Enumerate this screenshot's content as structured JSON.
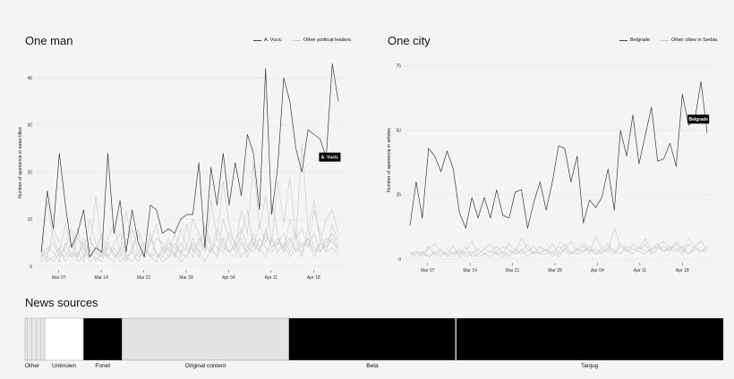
{
  "left_panel": {
    "title": "One man",
    "legend": [
      "A. Vucic",
      "Other political leaders"
    ],
    "callout": "A. Vucic"
  },
  "right_panel": {
    "title": "One city",
    "legend": [
      "Belgrade",
      "Other cities in Serbia"
    ],
    "callout": "Belgrade"
  },
  "sources_title": "News sources",
  "chart_data": [
    {
      "type": "line",
      "title": "One man",
      "xlabel": "",
      "ylabel": "Number of aperience in news titles",
      "ylim": [
        0,
        44
      ],
      "yticks": [
        0,
        10,
        20,
        30,
        40
      ],
      "xticks": [
        "Mar 07",
        "Mar 14",
        "Mar 21",
        "Mar 28",
        "Apr 04",
        "Apr 11",
        "Apr 18"
      ],
      "series": [
        {
          "name": "A. Vucic",
          "values": [
            3,
            16,
            8,
            24,
            13,
            4,
            7,
            12,
            2,
            4,
            3,
            24,
            7,
            14,
            3,
            12,
            5,
            2,
            13,
            12,
            7,
            8,
            7,
            10,
            11,
            11,
            22,
            4,
            21,
            13,
            24,
            13,
            22,
            15,
            28,
            24,
            12,
            42,
            11,
            21,
            40,
            35,
            25,
            20,
            29,
            28,
            27,
            23,
            43,
            35
          ]
        },
        {
          "name": "Other political leaders",
          "values": [
            1,
            14,
            6,
            3,
            9,
            4,
            8,
            2,
            10,
            5,
            2,
            6,
            9,
            3,
            12,
            4,
            7,
            2,
            5,
            9,
            3,
            6,
            2,
            8,
            4,
            10,
            7,
            3,
            14,
            6,
            18,
            9,
            4,
            12,
            7,
            22,
            8,
            15,
            5,
            18,
            9,
            19,
            6,
            26,
            8,
            14,
            5,
            10,
            12,
            7
          ]
        },
        {
          "name": "Other political leaders",
          "values": [
            2,
            3,
            5,
            2,
            4,
            8,
            2,
            6,
            3,
            15,
            4,
            2,
            5,
            7,
            2,
            3,
            8,
            4,
            2,
            6,
            5,
            3,
            7,
            2,
            9,
            3,
            5,
            8,
            4,
            2,
            10,
            6,
            3,
            7,
            12,
            4,
            9,
            5,
            14,
            7,
            3,
            10,
            6,
            8,
            4,
            12,
            7,
            3,
            9,
            5
          ]
        },
        {
          "name": "Other political leaders",
          "values": [
            4,
            2,
            8,
            5,
            3,
            2,
            6,
            4,
            2,
            3,
            7,
            2,
            4,
            2,
            5,
            8,
            3,
            2,
            6,
            3,
            2,
            5,
            4,
            3,
            2,
            6,
            3,
            9,
            5,
            4,
            3,
            7,
            5,
            2,
            4,
            6,
            3,
            8,
            4,
            5,
            7,
            3,
            6,
            2,
            8,
            4,
            3,
            5,
            7,
            4
          ]
        },
        {
          "name": "Other political leaders",
          "values": [
            1,
            2,
            1,
            3,
            2,
            5,
            1,
            2,
            4,
            1,
            3,
            2,
            1,
            4,
            2,
            1,
            3,
            5,
            2,
            1,
            4,
            2,
            3,
            1,
            2,
            5,
            3,
            1,
            4,
            2,
            6,
            3,
            2,
            5,
            3,
            7,
            4,
            2,
            6,
            3,
            5,
            2,
            4,
            3,
            6,
            2,
            5,
            3,
            4,
            2
          ]
        },
        {
          "name": "Other political leaders",
          "values": [
            3,
            1,
            2,
            4,
            1,
            3,
            2,
            5,
            1,
            2,
            1,
            4,
            3,
            1,
            2,
            3,
            1,
            4,
            2,
            3,
            1,
            2,
            5,
            3,
            4,
            2,
            6,
            4,
            3,
            8,
            5,
            3,
            4,
            6,
            2,
            5,
            3,
            7,
            4,
            6,
            3,
            5,
            7,
            4,
            6,
            3,
            5,
            4,
            6,
            3
          ]
        },
        {
          "name": "Other political leaders",
          "values": [
            2,
            4,
            3,
            1,
            5,
            2,
            3,
            1,
            6,
            3,
            2,
            5,
            2,
            3,
            1,
            4,
            2,
            3,
            7,
            2,
            3,
            4,
            2,
            5,
            3,
            4,
            2,
            5,
            3,
            6,
            4,
            3,
            5,
            8,
            4,
            3,
            6,
            4,
            3,
            5,
            4,
            6,
            3,
            5,
            4,
            7,
            3,
            6,
            5,
            4
          ]
        }
      ]
    },
    {
      "type": "line",
      "title": "One city",
      "xlabel": "",
      "ylabel": "Number of aperience in articles",
      "ylim": [
        0,
        77
      ],
      "yticks": [
        0,
        25,
        50,
        75
      ],
      "xticks": [
        "Mar 07",
        "Mar 14",
        "Mar 21",
        "Mar 28",
        "Apr 04",
        "Apr 11",
        "Apr 18"
      ],
      "series": [
        {
          "name": "Belgrade",
          "values": [
            13,
            30,
            16,
            43,
            40,
            34,
            42,
            35,
            18,
            12,
            24,
            16,
            24,
            16,
            27,
            17,
            16,
            26,
            27,
            12,
            22,
            30,
            19,
            30,
            44,
            43,
            30,
            40,
            14,
            23,
            20,
            24,
            35,
            19,
            50,
            40,
            56,
            37,
            48,
            59,
            38,
            39,
            45,
            36,
            64,
            52,
            54,
            69,
            49
          ]
        },
        {
          "name": "Other cities in Serbia",
          "values": [
            2,
            3,
            1,
            4,
            6,
            3,
            2,
            5,
            1,
            3,
            7,
            2,
            4,
            3,
            5,
            2,
            6,
            3,
            8,
            4,
            2,
            5,
            3,
            6,
            2,
            4,
            7,
            3,
            5,
            2,
            9,
            4,
            3,
            12,
            5,
            3,
            6,
            4,
            8,
            3,
            5,
            7,
            4,
            6,
            3,
            8,
            5,
            7,
            4
          ]
        },
        {
          "name": "Other cities in Serbia",
          "values": [
            1,
            2,
            3,
            1,
            2,
            4,
            1,
            3,
            2,
            5,
            1,
            2,
            4,
            6,
            2,
            3,
            1,
            4,
            2,
            3,
            5,
            2,
            4,
            1,
            3,
            6,
            2,
            4,
            3,
            5,
            2,
            4,
            6,
            3,
            2,
            5,
            4,
            3,
            6,
            2,
            4,
            5,
            3,
            7,
            4,
            2,
            5,
            3,
            4
          ]
        },
        {
          "name": "Other cities in Serbia",
          "values": [
            3,
            1,
            2,
            5,
            2,
            1,
            4,
            2,
            3,
            1,
            2,
            4,
            2,
            1,
            3,
            5,
            4,
            2,
            3,
            6,
            2,
            3,
            4,
            2,
            5,
            3,
            2,
            4,
            6,
            3,
            4,
            2,
            5,
            3,
            6,
            4,
            2,
            5,
            3,
            4,
            6,
            3,
            5,
            4,
            2,
            6,
            4,
            3,
            5
          ]
        },
        {
          "name": "Other cities in Serbia",
          "values": [
            2,
            3,
            2,
            1,
            3,
            2,
            2,
            1,
            4,
            2,
            3,
            1,
            2,
            3,
            2,
            1,
            3,
            2,
            4,
            1,
            3,
            2,
            2,
            3,
            1,
            4,
            3,
            2,
            3,
            4,
            2,
            3,
            4,
            2,
            5,
            3,
            4,
            3,
            2,
            4,
            5,
            3,
            4,
            3,
            5,
            2,
            4,
            3,
            3
          ]
        }
      ]
    },
    {
      "type": "bar",
      "title": "News sources",
      "categories": [
        "Other",
        "Unknown",
        "Fonet",
        "Original content",
        "Beta",
        "Tanjug"
      ],
      "values": [
        22,
        43,
        43,
        186,
        186,
        298
      ],
      "colors": [
        "#ededed",
        "#ffffff",
        "#000000",
        "#e2e2e2",
        "#000000",
        "#000000"
      ]
    }
  ]
}
